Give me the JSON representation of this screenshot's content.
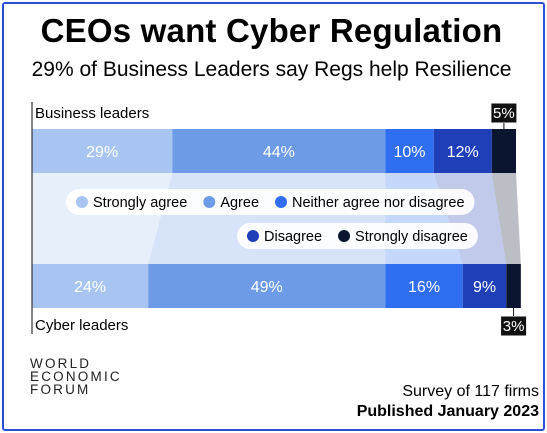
{
  "header": {
    "title": "CEOs want Cyber Regulation",
    "subtitle": "29% of Business Leaders say Regs help Resilience"
  },
  "footer": {
    "logo_lines": [
      "WORLD",
      "ECONOMIC",
      "FORUM"
    ],
    "survey": "Survey of 117 firms",
    "published": "Published January 2023"
  },
  "chart_data": {
    "type": "bar",
    "orientation": "horizontal-stacked-100",
    "rows": [
      "Business leaders",
      "Cyber leaders"
    ],
    "legend": [
      "Strongly agree",
      "Agree",
      "Neither agree nor disagree",
      "Disagree",
      "Strongly disagree"
    ],
    "series": [
      {
        "name": "Strongly agree",
        "values": [
          29,
          24
        ],
        "labels": [
          "29%",
          "24%"
        ],
        "color": "#a8c5f2"
      },
      {
        "name": "Agree",
        "values": [
          44,
          49
        ],
        "labels": [
          "44%",
          "49%"
        ],
        "color": "#6e9be8"
      },
      {
        "name": "Neither agree nor disagree",
        "values": [
          10,
          16
        ],
        "labels": [
          "10%",
          "16%"
        ],
        "color": "#2f6ef0"
      },
      {
        "name": "Disagree",
        "values": [
          12,
          9
        ],
        "labels": [
          "12%",
          "9%"
        ],
        "color": "#1f3fb8"
      },
      {
        "name": "Strongly disagree",
        "values": [
          5,
          3
        ],
        "labels": [
          "5%",
          "3%"
        ],
        "color": "#0b1530"
      }
    ],
    "xlim": [
      0,
      100
    ],
    "legend_placement": "center"
  }
}
